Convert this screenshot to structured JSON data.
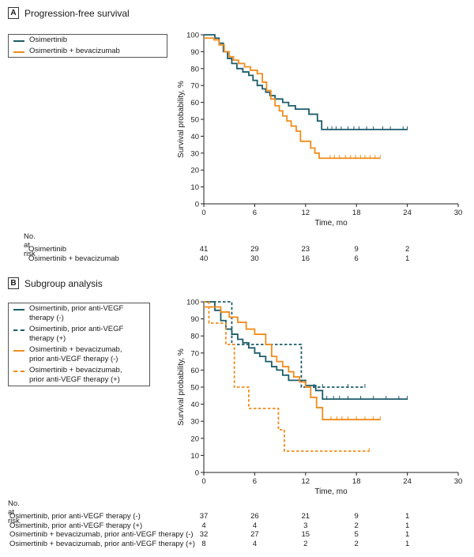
{
  "colors": {
    "teal": "#1d5c6b",
    "orange": "#f08c1c"
  },
  "chart_data": [
    {
      "panel": "A",
      "title": "Progression-free survival",
      "type": "line",
      "step": true,
      "xlabel": "Time, mo",
      "ylabel": "Survival probability, %",
      "xlim": [
        0,
        30
      ],
      "ylim": [
        0,
        100
      ],
      "xticks": [
        0,
        6,
        12,
        18,
        24,
        30
      ],
      "yticks": [
        0,
        10,
        20,
        30,
        40,
        50,
        60,
        70,
        80,
        90,
        100
      ],
      "series": [
        {
          "name": "Osimertinib",
          "color": "#1d5c6b",
          "dash": false,
          "x": [
            0,
            1.3,
            1.8,
            2.3,
            2.8,
            3.3,
            3.9,
            4.6,
            5.3,
            5.8,
            6.3,
            6.9,
            7.3,
            7.8,
            8.4,
            9.3,
            10.0,
            10.8,
            12.4,
            13.4,
            13.9,
            24.0
          ],
          "y": [
            100,
            98,
            95,
            90,
            86,
            83,
            80,
            78,
            76,
            73,
            70,
            68,
            66,
            64,
            62,
            60,
            58,
            56,
            53,
            49,
            44,
            44
          ],
          "censor_x": [
            14.6,
            15.1,
            15.6,
            16.2,
            17.0,
            17.7,
            18.3,
            19.2,
            20.0,
            21.1,
            22.0,
            23.5,
            24.0
          ],
          "censor_y": 44
        },
        {
          "name": "Osimertinib + bevacizumab",
          "color": "#f08c1c",
          "dash": false,
          "x": [
            0,
            1.2,
            1.8,
            2.4,
            3.0,
            3.5,
            4.1,
            4.8,
            5.5,
            6.3,
            6.9,
            7.4,
            7.9,
            8.4,
            8.9,
            9.3,
            9.8,
            10.3,
            10.9,
            11.4,
            12.6,
            13.1,
            13.6,
            20.8
          ],
          "y": [
            98,
            97,
            94,
            90,
            87,
            85,
            83,
            81,
            79,
            77,
            72,
            67,
            62,
            58,
            55,
            52,
            49,
            46,
            43,
            37,
            33,
            30,
            27,
            27
          ],
          "censor_x": [
            14.9,
            15.4,
            16.0,
            16.7,
            17.3,
            17.9,
            18.5,
            19.0,
            19.6,
            20.2,
            20.8
          ],
          "censor_y": 27
        }
      ],
      "risk_table": {
        "title": "No. at risk",
        "times": [
          0,
          6,
          12,
          18,
          24,
          30
        ],
        "rows": [
          {
            "label": "Osimertinib",
            "values": [
              "41",
              "29",
              "23",
              "9",
              "2"
            ]
          },
          {
            "label": "Osimertinib + bevacizumab",
            "values": [
              "40",
              "30",
              "16",
              "6",
              "1"
            ]
          }
        ]
      }
    },
    {
      "panel": "B",
      "title": "Subgroup analysis",
      "type": "line",
      "step": true,
      "xlabel": "Time, mo",
      "ylabel": "Survival probability, %",
      "xlim": [
        0,
        30
      ],
      "ylim": [
        0,
        100
      ],
      "xticks": [
        0,
        6,
        12,
        18,
        24,
        30
      ],
      "yticks": [
        0,
        10,
        20,
        30,
        40,
        50,
        60,
        70,
        80,
        90,
        100
      ],
      "series": [
        {
          "name": "Osimertinib, prior anti-VEGF therapy (-)",
          "color": "#1d5c6b",
          "dash": false,
          "x": [
            0,
            1.3,
            2.0,
            2.6,
            3.3,
            4.0,
            4.6,
            5.3,
            6.0,
            6.6,
            7.3,
            8.0,
            8.6,
            9.3,
            10.0,
            10.6,
            11.2,
            12.0,
            13.2,
            14.0,
            24.0
          ],
          "y": [
            100,
            95,
            89,
            84,
            81,
            78,
            76,
            73,
            70,
            68,
            65,
            62,
            60,
            57,
            54,
            54,
            54,
            51,
            48,
            43,
            43
          ],
          "censor_x": [
            14.5,
            15.3,
            16.0,
            17.0,
            18.5,
            20.0,
            21.5,
            23.0,
            24.0
          ],
          "censor_y": 43
        },
        {
          "name": "Osimertinib, prior anti-VEGF therapy (+)",
          "color": "#1d5c6b",
          "dash": true,
          "x": [
            0,
            2.8,
            3.3,
            11.5,
            19.0
          ],
          "y": [
            100,
            100,
            75,
            50,
            50
          ],
          "censor_x": [
            13.0,
            14.0,
            17.0,
            19.0
          ],
          "censor_y": 50
        },
        {
          "name": "Osimertinib + bevacizumab,\nprior anti-VEGF therapy (-)",
          "color": "#f08c1c",
          "dash": false,
          "x": [
            0,
            2.0,
            3.0,
            4.0,
            5.0,
            6.0,
            7.3,
            8.0,
            8.6,
            9.3,
            10.0,
            10.6,
            11.3,
            12.0,
            12.6,
            13.3,
            14.0,
            20.8
          ],
          "y": [
            97,
            94,
            91,
            88,
            84,
            81,
            75,
            68,
            65,
            62,
            59,
            56,
            53,
            50,
            44,
            38,
            31,
            31
          ],
          "censor_x": [
            15.0,
            15.7,
            16.3,
            17.0,
            18.0,
            19.0,
            20.0,
            20.8
          ],
          "censor_y": 31
        },
        {
          "name": "Osimertinib + bevacizumab,\nprior anti-VEGF therapy (+)",
          "color": "#f08c1c",
          "dash": true,
          "x": [
            0,
            0.6,
            1.4,
            2.6,
            3.6,
            5.3,
            8.8,
            9.5,
            19.5
          ],
          "y": [
            100,
            87.5,
            87.5,
            75,
            50,
            37.5,
            25,
            12.5,
            12.5
          ],
          "censor_x": [
            19.5
          ],
          "censor_y": 12.5
        }
      ],
      "risk_table": {
        "title": "No. at risk",
        "times": [
          0,
          6,
          12,
          18,
          24,
          30
        ],
        "rows": [
          {
            "label": "Osimertinib, prior anti-VEGF therapy (-)",
            "values": [
              "37",
              "26",
              "21",
              "9",
              "1"
            ]
          },
          {
            "label": "Osimertinib, prior anti-VEGF therapy (+)",
            "values": [
              "4",
              "4",
              "3",
              "2",
              "1"
            ]
          },
          {
            "label": "Osimertinib + bevacizumab, prior anti-VEGF therapy (-)",
            "values": [
              "32",
              "27",
              "15",
              "5",
              "1"
            ]
          },
          {
            "label": "Osimertinib + bevacizumab, prior anti-VEGF therapy (+)",
            "values": [
              "8",
              "4",
              "2",
              "2",
              "1"
            ]
          }
        ]
      }
    }
  ]
}
